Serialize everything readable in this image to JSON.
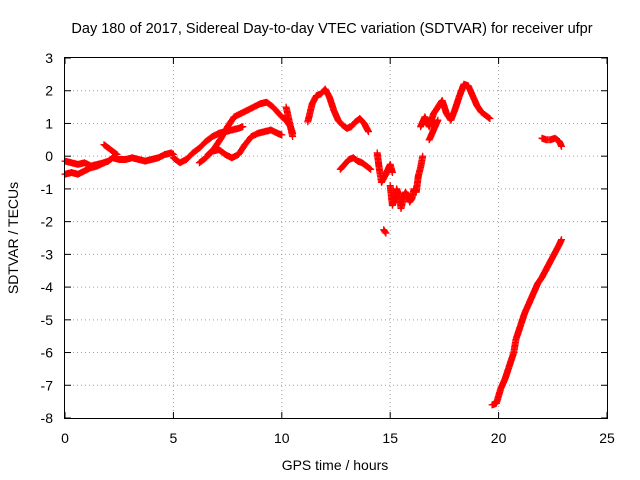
{
  "chart_data": {
    "type": "scatter",
    "title": "Day 180 of 2017, Sidereal Day-to-day VTEC variation (SDTVAR) for receiver ufpr",
    "xlabel": "GPS time / hours",
    "ylabel": "SDTVAR / TECUs",
    "xlim": [
      0,
      25
    ],
    "ylim": [
      -8,
      3
    ],
    "xticks": [
      "0",
      "5",
      "10",
      "15",
      "20",
      "25"
    ],
    "yticks": [
      "3",
      "2",
      "1",
      "0",
      "-1",
      "-2",
      "-3",
      "-4",
      "-5",
      "-6",
      "-7",
      "-8"
    ],
    "grid": true,
    "legend": "none",
    "marker": "plus",
    "color": "#ff0000",
    "series": [
      {
        "segments": [
          [
            [
              0.0,
              -0.15
            ],
            [
              0.3,
              -0.2
            ],
            [
              0.6,
              -0.25
            ],
            [
              0.9,
              -0.2
            ],
            [
              1.2,
              -0.3
            ],
            [
              1.5,
              -0.25
            ],
            [
              1.8,
              -0.2
            ],
            [
              2.0,
              -0.15
            ],
            [
              2.2,
              -0.05
            ],
            [
              2.5,
              -0.1
            ],
            [
              2.8,
              -0.1
            ],
            [
              3.1,
              -0.05
            ],
            [
              3.4,
              -0.1
            ],
            [
              3.7,
              -0.15
            ],
            [
              4.0,
              -0.1
            ],
            [
              4.3,
              -0.05
            ],
            [
              4.6,
              0.05
            ],
            [
              4.9,
              0.1
            ],
            [
              5.0,
              0.05
            ]
          ],
          [
            [
              0.0,
              -0.55
            ],
            [
              0.3,
              -0.5
            ],
            [
              0.6,
              -0.55
            ],
            [
              0.9,
              -0.45
            ],
            [
              1.2,
              -0.35
            ],
            [
              1.5,
              -0.3
            ],
            [
              1.8,
              -0.2
            ]
          ],
          [
            [
              1.8,
              0.35
            ],
            [
              2.0,
              0.25
            ],
            [
              2.2,
              0.15
            ],
            [
              2.4,
              0.05
            ]
          ],
          [
            [
              5.0,
              -0.05
            ],
            [
              5.3,
              -0.2
            ],
            [
              5.6,
              -0.1
            ],
            [
              5.9,
              0.1
            ],
            [
              6.2,
              0.25
            ],
            [
              6.5,
              0.45
            ],
            [
              6.8,
              0.6
            ],
            [
              7.1,
              0.7
            ],
            [
              7.4,
              0.75
            ],
            [
              7.7,
              0.8
            ],
            [
              8.0,
              0.85
            ],
            [
              8.2,
              0.9
            ]
          ],
          [
            [
              6.2,
              -0.2
            ],
            [
              6.5,
              -0.05
            ],
            [
              6.8,
              0.15
            ],
            [
              7.1,
              0.2
            ],
            [
              7.4,
              0.05
            ],
            [
              7.7,
              -0.05
            ],
            [
              8.0,
              0.05
            ],
            [
              8.3,
              0.35
            ],
            [
              8.6,
              0.6
            ],
            [
              8.9,
              0.7
            ],
            [
              9.2,
              0.75
            ],
            [
              9.5,
              0.8
            ],
            [
              9.8,
              0.7
            ],
            [
              10.0,
              0.65
            ]
          ],
          [
            [
              6.6,
              0.05
            ],
            [
              6.9,
              0.25
            ],
            [
              7.2,
              0.55
            ],
            [
              7.5,
              0.9
            ],
            [
              7.8,
              1.2
            ],
            [
              8.1,
              1.3
            ],
            [
              8.4,
              1.4
            ],
            [
              8.7,
              1.5
            ],
            [
              9.0,
              1.6
            ],
            [
              9.3,
              1.65
            ],
            [
              9.6,
              1.5
            ],
            [
              9.8,
              1.35
            ],
            [
              10.0,
              1.2
            ],
            [
              10.2,
              1.1
            ],
            [
              10.4,
              0.9
            ],
            [
              10.5,
              0.7
            ]
          ],
          [
            [
              10.2,
              1.5
            ],
            [
              10.3,
              1.2
            ],
            [
              10.4,
              0.9
            ],
            [
              10.5,
              0.6
            ]
          ],
          [
            [
              11.2,
              1.05
            ],
            [
              11.4,
              1.6
            ],
            [
              11.6,
              1.85
            ],
            [
              11.8,
              1.9
            ],
            [
              12.0,
              2.05
            ],
            [
              12.2,
              1.8
            ],
            [
              12.4,
              1.4
            ],
            [
              12.6,
              1.1
            ],
            [
              12.8,
              0.95
            ],
            [
              13.0,
              0.85
            ],
            [
              13.2,
              0.9
            ],
            [
              13.4,
              1.05
            ],
            [
              13.6,
              1.15
            ],
            [
              13.8,
              1.0
            ],
            [
              14.0,
              0.75
            ]
          ],
          [
            [
              12.7,
              -0.4
            ],
            [
              12.9,
              -0.25
            ],
            [
              13.1,
              -0.1
            ],
            [
              13.3,
              -0.05
            ],
            [
              13.5,
              -0.15
            ],
            [
              13.7,
              -0.2
            ],
            [
              13.9,
              -0.3
            ],
            [
              14.1,
              -0.4
            ]
          ],
          [
            [
              14.4,
              0.1
            ],
            [
              14.5,
              -0.4
            ],
            [
              14.6,
              -0.8
            ],
            [
              14.8,
              -0.55
            ],
            [
              15.0,
              -0.25
            ],
            [
              15.1,
              -0.5
            ]
          ],
          [
            [
              14.7,
              -2.25
            ],
            [
              14.8,
              -2.35
            ]
          ],
          [
            [
              15.0,
              -0.9
            ],
            [
              15.1,
              -1.5
            ],
            [
              15.2,
              -1.3
            ],
            [
              15.3,
              -1.0
            ],
            [
              15.4,
              -1.2
            ],
            [
              15.5,
              -1.6
            ],
            [
              15.6,
              -1.3
            ],
            [
              15.7,
              -1.1
            ],
            [
              15.8,
              -1.2
            ],
            [
              15.9,
              -1.4
            ],
            [
              16.0,
              -1.3
            ],
            [
              16.1,
              -1.0
            ],
            [
              16.2,
              -1.1
            ],
            [
              16.3,
              -0.6
            ],
            [
              16.4,
              -0.35
            ],
            [
              16.5,
              0.0
            ]
          ],
          [
            [
              16.4,
              0.9
            ],
            [
              16.6,
              1.2
            ],
            [
              16.8,
              0.9
            ],
            [
              17.0,
              1.3
            ],
            [
              17.2,
              1.5
            ],
            [
              17.4,
              1.7
            ],
            [
              17.6,
              1.3
            ],
            [
              17.8,
              1.1
            ],
            [
              18.0,
              1.45
            ],
            [
              18.2,
              1.85
            ],
            [
              18.4,
              2.2
            ],
            [
              18.6,
              2.15
            ],
            [
              18.8,
              1.85
            ],
            [
              19.0,
              1.55
            ],
            [
              19.2,
              1.35
            ],
            [
              19.4,
              1.25
            ],
            [
              19.6,
              1.15
            ]
          ],
          [
            [
              16.8,
              0.5
            ],
            [
              17.0,
              0.8
            ],
            [
              17.2,
              1.1
            ]
          ],
          [
            [
              19.7,
              -7.6
            ],
            [
              19.9,
              -7.55
            ],
            [
              20.1,
              -7.1
            ],
            [
              20.3,
              -6.8
            ],
            [
              20.5,
              -6.4
            ],
            [
              20.7,
              -6.0
            ],
            [
              20.8,
              -5.6
            ],
            [
              21.0,
              -5.2
            ],
            [
              21.2,
              -4.8
            ],
            [
              21.4,
              -4.5
            ],
            [
              21.6,
              -4.2
            ],
            [
              21.8,
              -3.9
            ],
            [
              22.0,
              -3.7
            ],
            [
              22.2,
              -3.45
            ],
            [
              22.4,
              -3.2
            ],
            [
              22.6,
              -2.95
            ],
            [
              22.8,
              -2.7
            ],
            [
              22.9,
              -2.55
            ]
          ],
          [
            [
              22.0,
              0.55
            ],
            [
              22.2,
              0.5
            ],
            [
              22.4,
              0.5
            ],
            [
              22.6,
              0.55
            ],
            [
              22.8,
              0.45
            ],
            [
              22.9,
              0.3
            ]
          ]
        ]
      }
    ]
  }
}
